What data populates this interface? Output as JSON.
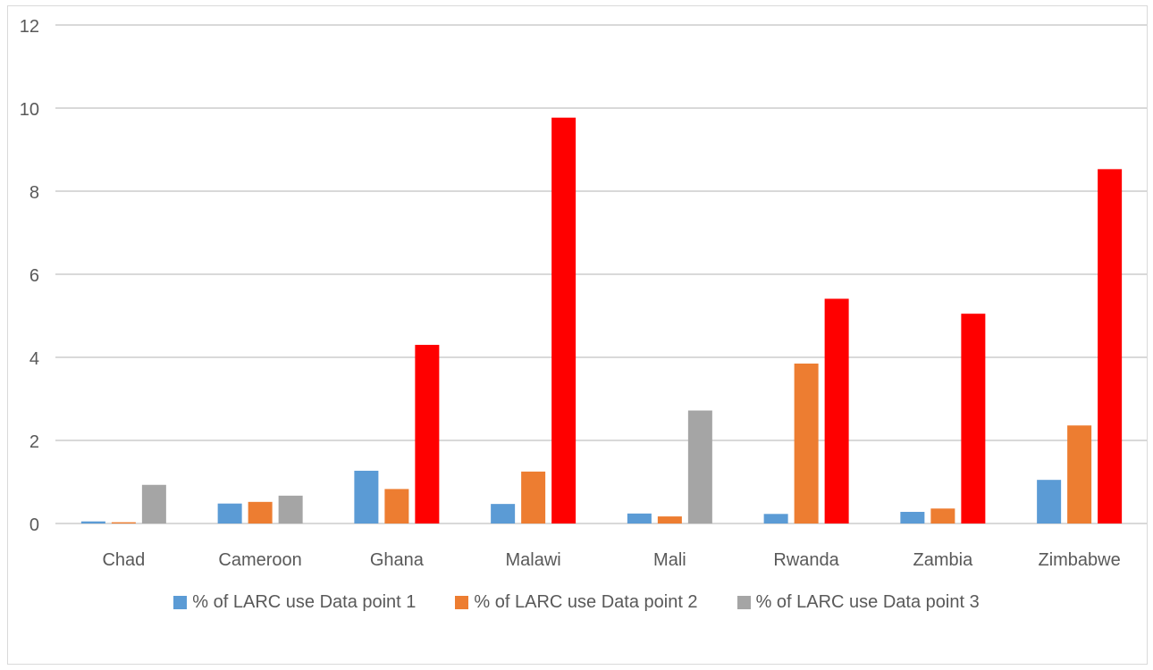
{
  "chart_data": {
    "type": "bar",
    "title": "",
    "xlabel": "",
    "ylabel": "",
    "ylim": [
      0,
      12
    ],
    "yticks": [
      0,
      2,
      4,
      6,
      8,
      10,
      12
    ],
    "grid": true,
    "legend_position": "bottom",
    "categories": [
      "Chad",
      "Cameroon",
      "Ghana",
      "Malawi",
      "Mali",
      "Rwanda",
      "Zambia",
      "Zimbabwe"
    ],
    "series": [
      {
        "name": "% of LARC use Data point 1",
        "color": "#5b9bd5",
        "values": [
          0.05,
          0.48,
          1.27,
          0.47,
          0.24,
          0.23,
          0.28,
          1.05
        ]
      },
      {
        "name": "% of LARC use Data point 2",
        "color": "#ed7d31",
        "values": [
          0.03,
          0.52,
          0.83,
          1.25,
          0.17,
          3.85,
          0.36,
          2.36
        ]
      },
      {
        "name": "% of LARC use Data point 3",
        "color": "#a5a5a5",
        "values": [
          0.93,
          0.67,
          4.3,
          9.77,
          2.72,
          5.41,
          5.05,
          8.53
        ],
        "point_colors": [
          "#a5a5a5",
          "#a5a5a5",
          "#ff0000",
          "#ff0000",
          "#a5a5a5",
          "#ff0000",
          "#ff0000",
          "#ff0000"
        ]
      }
    ]
  }
}
